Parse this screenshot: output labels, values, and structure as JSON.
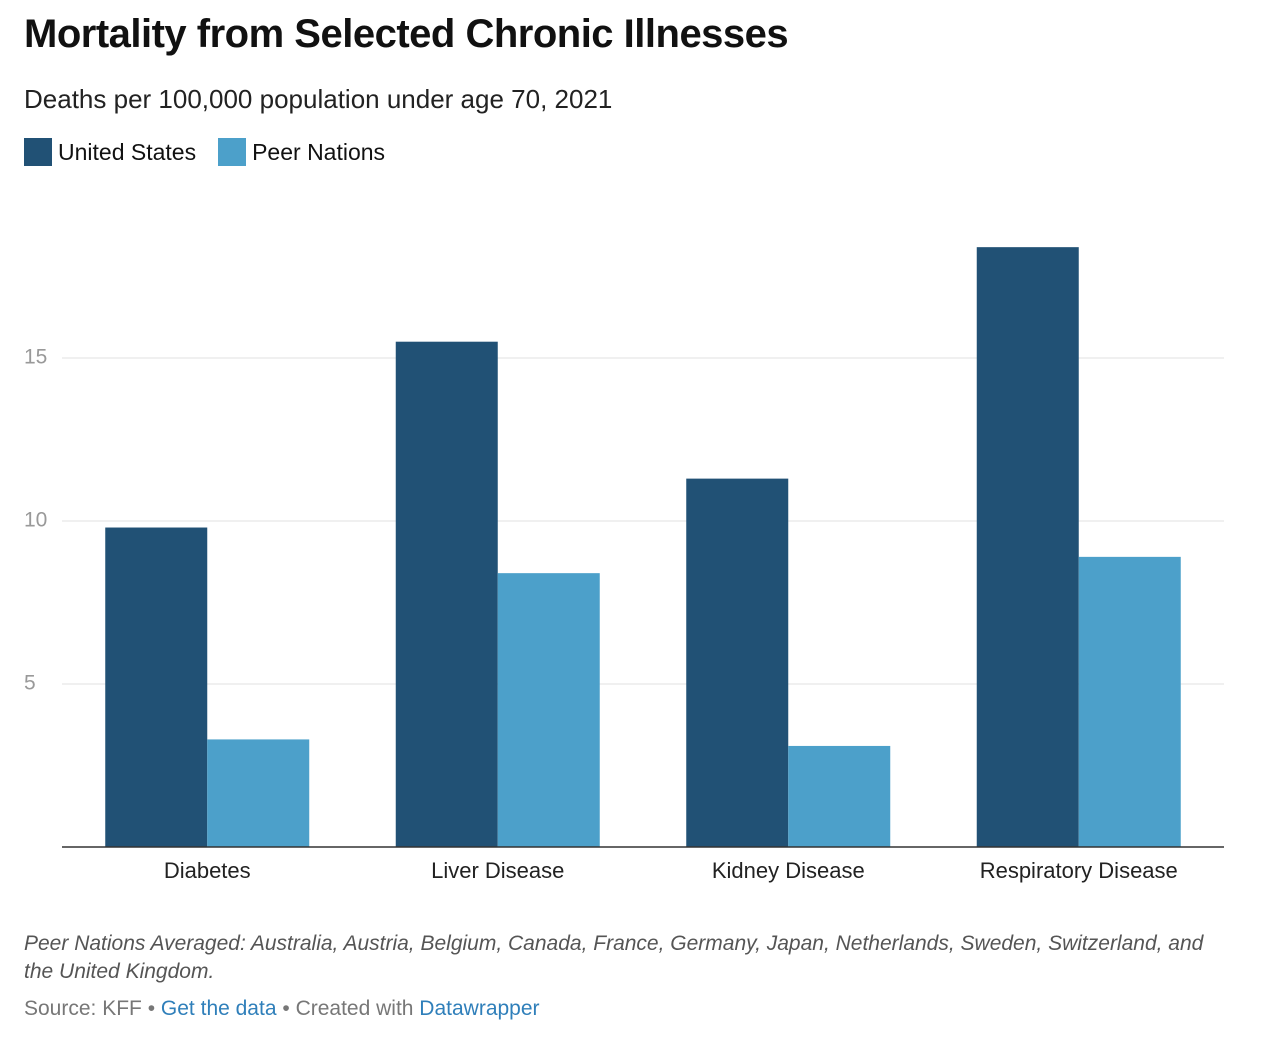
{
  "chart_data": {
    "type": "grouped_bar",
    "title": "Mortality from Selected Chronic Illnesses",
    "subtitle": "Deaths per 100,000 population under age 70, 2021",
    "categories": [
      "Diabetes",
      "Liver Disease",
      "Kidney Disease",
      "Respiratory Disease"
    ],
    "series": [
      {
        "name": "United States",
        "color": "#215175",
        "values": [
          9.8,
          15.5,
          11.3,
          18.4
        ]
      },
      {
        "name": "Peer Nations",
        "color": "#4ca0ca",
        "values": [
          3.3,
          8.4,
          3.1,
          8.9
        ]
      }
    ],
    "ylim": [
      0,
      20
    ],
    "yticks": [
      5,
      10,
      15
    ],
    "grid": true,
    "legend": "top-left"
  },
  "footer": {
    "note": "Peer Nations Averaged: Australia, Austria, Belgium, Canada, France, Germany, Japan, Netherlands, Sweden, Switzerland, and the United Kingdom.",
    "source": "Source: KFF",
    "separator": "•",
    "get_data": "Get the data",
    "created_with": "Created with",
    "datawrapper": "Datawrapper"
  }
}
